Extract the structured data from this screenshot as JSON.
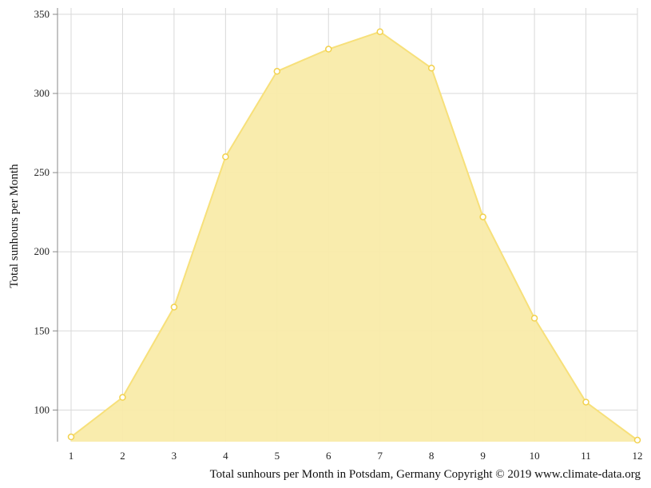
{
  "chart_data": {
    "type": "area",
    "x": [
      1,
      2,
      3,
      4,
      5,
      6,
      7,
      8,
      9,
      10,
      11,
      12
    ],
    "series": [
      {
        "values": [
          83,
          108,
          165,
          260,
          314,
          328,
          339,
          316,
          222,
          158,
          105,
          81
        ]
      }
    ],
    "xticks": [
      1,
      2,
      3,
      4,
      5,
      6,
      7,
      8,
      9,
      10,
      11,
      12
    ],
    "yticks": [
      100,
      150,
      200,
      250,
      300,
      350
    ],
    "xlim": [
      1,
      12
    ],
    "ylim": [
      80,
      354
    ],
    "ylabel": "Total sunhours per Month",
    "xlabel": "Total sunhours per Month in Potsdam, Germany Copyright © 2019 www.climate-data.org",
    "grid": true,
    "legend": "none",
    "colors": {
      "fill": "#f9eba9",
      "line": "#f7e07a",
      "marker_stroke": "#f2d14d",
      "marker_fill": "#ffffff",
      "grid": "#d9d9d9",
      "axis": "#888888"
    }
  }
}
